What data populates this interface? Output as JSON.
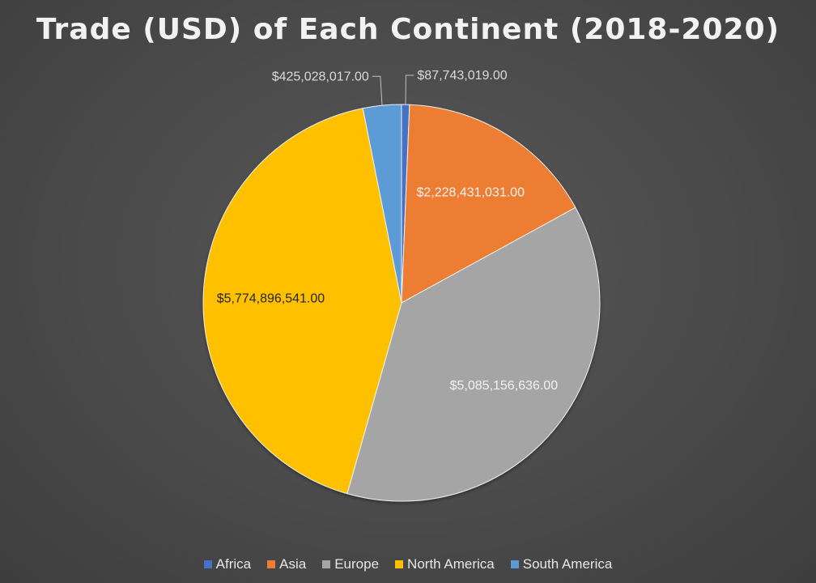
{
  "chart_data": {
    "type": "pie",
    "title": "Trade (USD) of Each Continent (2018-2020)",
    "categories": [
      "Africa",
      "Asia",
      "Europe",
      "North America",
      "South America"
    ],
    "values": [
      87743019,
      2228431031,
      5085156636,
      5774896541,
      425028017
    ],
    "data_labels": [
      "$87,743,019.00",
      "$2,228,431,031.00",
      "$5,085,156,636.00",
      "$5,774,896,541.00",
      "$425,028,017.00"
    ],
    "colors": [
      "#4472C4",
      "#ED7D31",
      "#A5A5A5",
      "#FFC000",
      "#5B9BD5"
    ],
    "label_colors": [
      "#d9d9d9",
      "#f2f2f2",
      "#f2f2f2",
      "#262626",
      "#d9d9d9"
    ],
    "legend_position": "bottom",
    "start_angle_deg": 0,
    "direction": "clockwise"
  }
}
